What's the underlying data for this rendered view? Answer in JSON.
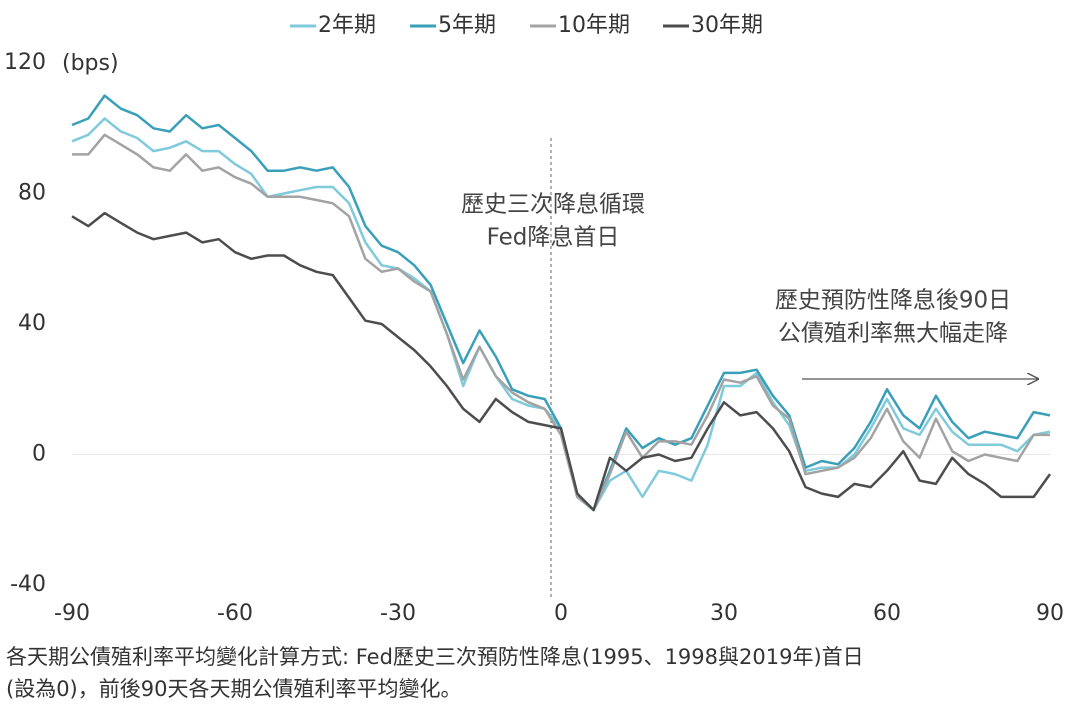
{
  "chart_data": {
    "type": "line",
    "y_label": "(bps)",
    "x": [
      -90,
      -87,
      -84,
      -81,
      -78,
      -75,
      -72,
      -69,
      -66,
      -63,
      -60,
      -57,
      -54,
      -51,
      -48,
      -45,
      -42,
      -39,
      -36,
      -33,
      -30,
      -27,
      -24,
      -21,
      -18,
      -15,
      -12,
      -9,
      -6,
      -3,
      0,
      3,
      6,
      9,
      12,
      15,
      18,
      21,
      24,
      27,
      30,
      33,
      36,
      39,
      42,
      45,
      48,
      51,
      54,
      57,
      60,
      63,
      66,
      69,
      72,
      75,
      78,
      81,
      84,
      87,
      90
    ],
    "series": [
      {
        "name": "2年期",
        "color": "#7fcadb",
        "values": [
          96,
          98,
          103,
          99,
          97,
          93,
          94,
          96,
          93,
          93,
          89,
          86,
          79,
          80,
          81,
          82,
          82,
          77,
          65,
          58,
          57,
          54,
          50,
          37,
          21,
          33,
          24,
          17,
          15,
          14,
          8,
          -13,
          -17,
          -8,
          -5,
          -13,
          -5,
          -6,
          -8,
          3,
          21,
          21,
          25,
          16,
          9,
          -5,
          -4,
          -4,
          0,
          8,
          17,
          8,
          6,
          14,
          7,
          3,
          3,
          3,
          1,
          6,
          7
        ]
      },
      {
        "name": "5年期",
        "color": "#3a9fb9",
        "values": [
          101,
          103,
          110,
          106,
          104,
          100,
          99,
          104,
          100,
          101,
          97,
          93,
          87,
          87,
          88,
          87,
          88,
          82,
          70,
          64,
          62,
          58,
          52,
          40,
          28,
          38,
          30,
          20,
          18,
          17,
          8,
          -13,
          -17,
          -5,
          8,
          2,
          5,
          3,
          5,
          15,
          25,
          25,
          26,
          18,
          12,
          -4,
          -2,
          -3,
          2,
          10,
          20,
          12,
          8,
          18,
          10,
          5,
          7,
          6,
          5,
          13,
          12
        ]
      },
      {
        "name": "10年期",
        "color": "#a3a3a3",
        "values": [
          92,
          92,
          98,
          95,
          92,
          88,
          87,
          92,
          87,
          88,
          85,
          83,
          79,
          79,
          79,
          78,
          77,
          73,
          60,
          56,
          57,
          53,
          50,
          37,
          23,
          33,
          24,
          19,
          16,
          14,
          6,
          -13,
          -17,
          -6,
          7,
          -1,
          4,
          4,
          3,
          12,
          23,
          22,
          24,
          15,
          11,
          -6,
          -5,
          -4,
          -1,
          5,
          14,
          4,
          -1,
          11,
          1,
          -2,
          0,
          -1,
          -2,
          6,
          6
        ]
      },
      {
        "name": "30年期",
        "color": "#4d4d4d",
        "values": [
          73,
          70,
          74,
          71,
          68,
          66,
          67,
          68,
          65,
          66,
          62,
          60,
          61,
          61,
          58,
          56,
          55,
          48,
          41,
          40,
          36,
          32,
          27,
          21,
          14,
          10,
          17,
          13,
          10,
          9,
          8,
          -12,
          -17,
          -1,
          -5,
          -1,
          0,
          -2,
          -1,
          8,
          16,
          12,
          13,
          8,
          1,
          -10,
          -12,
          -13,
          -9,
          -10,
          -5,
          1,
          -8,
          -9,
          -1,
          -6,
          -9,
          -13,
          -13,
          -13,
          -6
        ]
      }
    ],
    "xlim": [
      -90,
      90
    ],
    "xticks": [
      -90,
      -60,
      -30,
      0,
      30,
      60,
      90
    ],
    "ylim": [
      -40,
      120
    ],
    "yticks": [
      -40,
      0,
      40,
      80,
      120
    ],
    "grid": false,
    "zero_line": true,
    "legend": "top",
    "annotations": [
      "歷史三次降息循環",
      "Fed降息首日",
      "歷史預防性降息後90日",
      "公債殖利率無大幅走降"
    ],
    "note": [
      "各天期公債殖利率平均變化計算方式: Fed歷史三次預防性降息(1995、1998與2019年)首日",
      "(設為0)，前後90天各天期公債殖利率平均變化。"
    ]
  }
}
